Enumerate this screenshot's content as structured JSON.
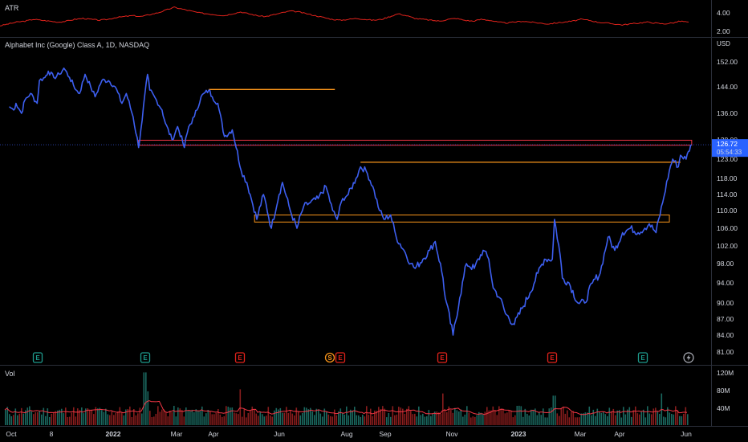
{
  "atr_pane": {
    "title": "ATR",
    "ticks": [
      "4.00",
      "2.00"
    ],
    "values": [
      2.6,
      2.8,
      3.0,
      3.1,
      3.3,
      3.2,
      3.1,
      3.0,
      3.1,
      3.3,
      3.4,
      3.3,
      3.2,
      3.3,
      3.5,
      3.6,
      3.7,
      3.6,
      3.8,
      4.0,
      4.3,
      4.6,
      4.4,
      4.2,
      4.0,
      3.9,
      3.8,
      3.7,
      3.9,
      4.1,
      3.9,
      3.7,
      3.6,
      3.8,
      4.0,
      4.2,
      4.1,
      3.9,
      3.7,
      3.5,
      3.3,
      3.2,
      3.3,
      3.4,
      3.3,
      3.2,
      3.3,
      3.6,
      3.9,
      3.7,
      3.4,
      3.3,
      3.2,
      3.1,
      3.3,
      3.4,
      3.2,
      3.1,
      3.3,
      3.2,
      3.0,
      2.9,
      3.0,
      3.1,
      3.0,
      2.9,
      2.8,
      2.9,
      3.0,
      3.1,
      3.3,
      3.2,
      3.0,
      2.9,
      2.8,
      2.7,
      2.8,
      2.9,
      3.0,
      2.9,
      2.8,
      2.9,
      3.1,
      3.0
    ]
  },
  "price_pane": {
    "title": "Alphabet Inc (Google) Class A, 1D, NASDAQ",
    "currency": "USD",
    "ticks": [
      "152.00",
      "144.00",
      "136.00",
      "128.00",
      "123.00",
      "118.00",
      "114.00",
      "110.00",
      "106.00",
      "102.00",
      "98.00",
      "94.00",
      "90.00",
      "87.00",
      "84.00",
      "81.00"
    ],
    "last_price_label": "126.72",
    "countdown_label": "05:54:33",
    "earnings_markers": [
      {
        "label": "E",
        "kind": "positive"
      },
      {
        "label": "E",
        "kind": "positive"
      },
      {
        "label": "E",
        "kind": "negative"
      },
      {
        "label": "S",
        "kind": "split"
      },
      {
        "label": "E",
        "kind": "negative"
      },
      {
        "label": "E",
        "kind": "negative"
      },
      {
        "label": "E",
        "kind": "negative"
      },
      {
        "label": "E",
        "kind": "positive"
      }
    ],
    "flash_icon": "lightning-icon"
  },
  "volume_pane": {
    "title": "Vol",
    "ticks": [
      "120M",
      "80M",
      "40M"
    ]
  },
  "time_axis": {
    "labels": [
      "Oct",
      "8",
      "2022",
      "Mar",
      "Apr",
      "Jun",
      "Aug",
      "Sep",
      "Nov",
      "2023",
      "Mar",
      "Apr",
      "Jun"
    ]
  },
  "chart_data": {
    "type": "line",
    "symbol": "GOOGL",
    "line_color": "#3d5ff0",
    "price": [
      [
        "2021-10-01",
        138
      ],
      [
        "2021-10-05",
        137
      ],
      [
        "2021-10-07",
        139
      ],
      [
        "2021-10-12",
        136
      ],
      [
        "2021-10-15",
        140
      ],
      [
        "2021-10-20",
        142
      ],
      [
        "2021-10-26",
        139
      ],
      [
        "2021-10-28",
        146
      ],
      [
        "2021-11-02",
        147
      ],
      [
        "2021-11-05",
        149
      ],
      [
        "2021-11-10",
        147
      ],
      [
        "2021-11-15",
        148
      ],
      [
        "2021-11-19",
        150
      ],
      [
        "2021-11-24",
        147
      ],
      [
        "2021-11-30",
        143
      ],
      [
        "2021-12-03",
        142
      ],
      [
        "2021-12-08",
        148
      ],
      [
        "2021-12-13",
        144
      ],
      [
        "2021-12-17",
        141
      ],
      [
        "2021-12-23",
        146
      ],
      [
        "2021-12-29",
        146
      ],
      [
        "2022-01-04",
        144
      ],
      [
        "2022-01-10",
        139
      ],
      [
        "2022-01-14",
        142
      ],
      [
        "2022-01-20",
        135
      ],
      [
        "2022-01-25",
        126
      ],
      [
        "2022-01-27",
        131
      ],
      [
        "2022-02-02",
        148
      ],
      [
        "2022-02-04",
        143
      ],
      [
        "2022-02-10",
        140
      ],
      [
        "2022-02-15",
        137
      ],
      [
        "2022-02-18",
        133
      ],
      [
        "2022-02-24",
        128
      ],
      [
        "2022-03-01",
        132
      ],
      [
        "2022-03-07",
        126
      ],
      [
        "2022-03-11",
        132
      ],
      [
        "2022-03-16",
        135
      ],
      [
        "2022-03-22",
        141
      ],
      [
        "2022-03-29",
        143
      ],
      [
        "2022-04-01",
        141
      ],
      [
        "2022-04-06",
        139
      ],
      [
        "2022-04-12",
        129
      ],
      [
        "2022-04-19",
        131
      ],
      [
        "2022-04-27",
        120
      ],
      [
        "2022-05-02",
        117
      ],
      [
        "2022-05-05",
        114
      ],
      [
        "2022-05-11",
        108
      ],
      [
        "2022-05-17",
        114
      ],
      [
        "2022-05-24",
        106
      ],
      [
        "2022-05-31",
        114
      ],
      [
        "2022-06-03",
        117
      ],
      [
        "2022-06-10",
        110
      ],
      [
        "2022-06-16",
        106
      ],
      [
        "2022-06-22",
        111
      ],
      [
        "2022-06-28",
        112
      ],
      [
        "2022-07-05",
        113
      ],
      [
        "2022-07-12",
        116
      ],
      [
        "2022-07-18",
        110
      ],
      [
        "2022-07-22",
        108
      ],
      [
        "2022-07-27",
        113
      ],
      [
        "2022-08-01",
        114
      ],
      [
        "2022-08-08",
        118
      ],
      [
        "2022-08-12",
        121
      ],
      [
        "2022-08-17",
        120
      ],
      [
        "2022-08-23",
        116
      ],
      [
        "2022-08-29",
        110
      ],
      [
        "2022-09-02",
        108
      ],
      [
        "2022-09-08",
        109
      ],
      [
        "2022-09-13",
        104
      ],
      [
        "2022-09-20",
        101
      ],
      [
        "2022-09-26",
        98
      ],
      [
        "2022-09-30",
        97
      ],
      [
        "2022-10-07",
        99
      ],
      [
        "2022-10-13",
        101
      ],
      [
        "2022-10-18",
        103
      ],
      [
        "2022-10-25",
        95
      ],
      [
        "2022-10-27",
        91
      ],
      [
        "2022-11-03",
        84
      ],
      [
        "2022-11-09",
        91
      ],
      [
        "2022-11-15",
        98
      ],
      [
        "2022-11-22",
        97
      ],
      [
        "2022-11-30",
        101
      ],
      [
        "2022-12-05",
        99
      ],
      [
        "2022-12-09",
        93
      ],
      [
        "2022-12-15",
        91
      ],
      [
        "2022-12-20",
        88
      ],
      [
        "2022-12-28",
        86
      ],
      [
        "2023-01-04",
        89
      ],
      [
        "2023-01-11",
        92
      ],
      [
        "2023-01-18",
        96
      ],
      [
        "2023-01-24",
        99
      ],
      [
        "2023-01-31",
        99
      ],
      [
        "2023-02-02",
        108
      ],
      [
        "2023-02-07",
        100
      ],
      [
        "2023-02-09",
        95
      ],
      [
        "2023-02-15",
        94
      ],
      [
        "2023-02-23",
        90
      ],
      [
        "2023-03-01",
        90
      ],
      [
        "2023-03-08",
        94
      ],
      [
        "2023-03-15",
        96
      ],
      [
        "2023-03-22",
        104
      ],
      [
        "2023-03-28",
        101
      ],
      [
        "2023-04-04",
        105
      ],
      [
        "2023-04-11",
        106
      ],
      [
        "2023-04-18",
        105
      ],
      [
        "2023-04-24",
        106
      ],
      [
        "2023-04-28",
        107
      ],
      [
        "2023-05-04",
        105
      ],
      [
        "2023-05-10",
        112
      ],
      [
        "2023-05-16",
        120
      ],
      [
        "2023-05-19",
        123
      ],
      [
        "2023-05-24",
        121
      ],
      [
        "2023-05-26",
        124
      ],
      [
        "2023-05-31",
        123
      ],
      [
        "2023-06-02",
        125
      ],
      [
        "2023-06-05",
        126.72
      ]
    ],
    "levels": [
      {
        "kind": "line",
        "price": 143.2,
        "from": "2022-03-29",
        "to": "2022-07-20",
        "color": "#f7931a"
      },
      {
        "kind": "zone",
        "top": 127.9,
        "bottom": 126.6,
        "from": "2022-01-25",
        "to": "2023-06-05",
        "color": "#f23645"
      },
      {
        "kind": "line",
        "price": 122.2,
        "from": "2022-08-12",
        "to": "2023-05-26",
        "color": "#f7931a"
      },
      {
        "kind": "zone",
        "top": 109.0,
        "bottom": 107.4,
        "from": "2022-05-09",
        "to": "2023-05-16",
        "color": "#f7931a"
      }
    ],
    "ylim": [
      80,
      155
    ],
    "volume_ylim": [
      0,
      130
    ]
  }
}
